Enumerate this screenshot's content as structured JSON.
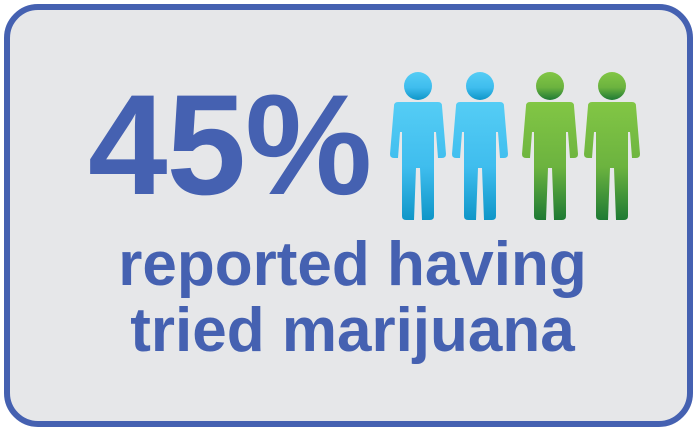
{
  "infographic": {
    "stat_value": "45%",
    "caption_line1": "reported having",
    "caption_line2": "tried marijuana",
    "progress": {
      "value": 45,
      "unit": "percent"
    },
    "people_icons": [
      {
        "name": "person-icon",
        "group": "other",
        "color_top": "#55cdf5",
        "color_bottom": "#0f96c8"
      },
      {
        "name": "person-icon",
        "group": "other",
        "color_top": "#55cdf5",
        "color_bottom": "#0f96c8"
      },
      {
        "name": "person-icon",
        "group": "tried",
        "color_top": "#7ec242",
        "color_bottom": "#1e7a34"
      },
      {
        "name": "person-icon",
        "group": "tried",
        "color_top": "#7ec242",
        "color_bottom": "#1e7a34"
      }
    ],
    "colors": {
      "accent": "#4561b1",
      "background": "#e6e7e9",
      "blue_person": "#3fbdee",
      "green_person": "#6cb33f"
    }
  }
}
